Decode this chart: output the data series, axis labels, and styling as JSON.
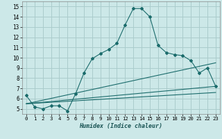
{
  "xlabel": "Humidex (Indice chaleur)",
  "background_color": "#cce8e8",
  "grid_color": "#aacccc",
  "line_color": "#1a6b6b",
  "xlim": [
    -0.5,
    23.5
  ],
  "ylim": [
    4.5,
    15.5
  ],
  "xticks": [
    0,
    1,
    2,
    3,
    4,
    5,
    6,
    7,
    8,
    9,
    10,
    11,
    12,
    13,
    14,
    15,
    16,
    17,
    18,
    19,
    20,
    21,
    22,
    23
  ],
  "yticks": [
    5,
    6,
    7,
    8,
    9,
    10,
    11,
    12,
    13,
    14,
    15
  ],
  "series": [
    {
      "x": [
        0,
        1,
        2,
        3,
        4,
        5,
        6,
        7,
        8,
        9,
        10,
        11,
        12,
        13,
        14,
        15,
        16,
        17,
        18,
        19,
        20,
        21,
        22,
        23
      ],
      "y": [
        6.3,
        5.2,
        5.0,
        5.3,
        5.3,
        4.8,
        6.5,
        8.5,
        9.9,
        10.4,
        10.8,
        11.4,
        13.2,
        14.8,
        14.8,
        14.0,
        11.2,
        10.5,
        10.3,
        10.2,
        9.7,
        8.5,
        9.0,
        7.2
      ]
    },
    {
      "x": [
        0,
        23
      ],
      "y": [
        5.5,
        9.5
      ]
    },
    {
      "x": [
        0,
        23
      ],
      "y": [
        5.5,
        7.2
      ]
    },
    {
      "x": [
        0,
        23
      ],
      "y": [
        5.5,
        6.6
      ]
    }
  ]
}
